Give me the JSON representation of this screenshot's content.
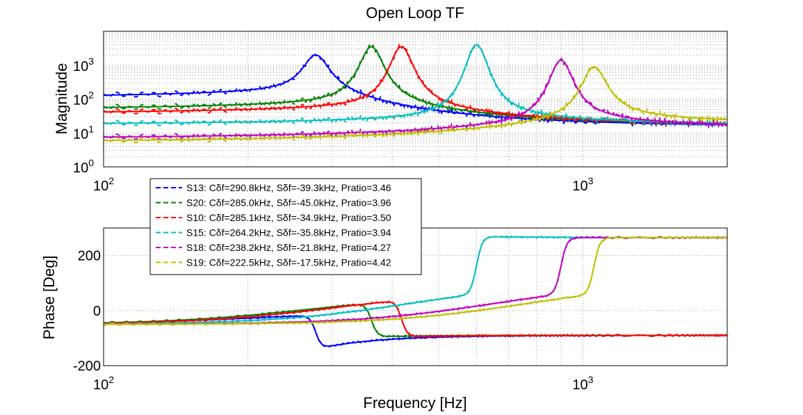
{
  "chart_data": [
    {
      "type": "line",
      "title": "Open Loop TF",
      "xlabel": "",
      "ylabel": "Magnitude",
      "xscale": "log",
      "yscale": "log",
      "xlim": [
        100,
        2000
      ],
      "ylim": [
        1,
        10000
      ],
      "x_ticks": [
        {
          "base": "10",
          "exp": "2",
          "value": 100
        },
        {
          "base": "10",
          "exp": "3",
          "value": 1000
        }
      ],
      "y_ticks": [
        {
          "base": "10",
          "exp": "0",
          "value": 1
        },
        {
          "base": "10",
          "exp": "1",
          "value": 10
        },
        {
          "base": "10",
          "exp": "2",
          "value": 100
        },
        {
          "base": "10",
          "exp": "3",
          "value": 1000
        }
      ],
      "grid": true,
      "series": [
        {
          "name": "S13",
          "color": "#0000ff",
          "low_value": 110,
          "peak_f": 277,
          "peak_value": 2000,
          "high_value": 16
        },
        {
          "name": "S20",
          "color": "#008000",
          "low_value": 50,
          "peak_f": 362,
          "peak_value": 3500,
          "high_value": 17
        },
        {
          "name": "S10",
          "color": "#ff0000",
          "low_value": 38,
          "peak_f": 418,
          "peak_value": 3500,
          "high_value": 17
        },
        {
          "name": "S15",
          "color": "#00bfbf",
          "low_value": 18,
          "peak_f": 600,
          "peak_value": 4000,
          "high_value": 17
        },
        {
          "name": "S18",
          "color": "#bf00bf",
          "low_value": 7,
          "peak_f": 900,
          "peak_value": 1400,
          "high_value": 14
        },
        {
          "name": "S19",
          "color": "#bfbf00",
          "low_value": 5.5,
          "peak_f": 1055,
          "peak_value": 900,
          "high_value": 18
        }
      ]
    },
    {
      "type": "line",
      "title": "",
      "xlabel": "Frequency [Hz]",
      "ylabel": "Phase [Deg]",
      "xscale": "log",
      "xlim": [
        100,
        2000
      ],
      "ylim": [
        -200,
        300
      ],
      "x_ticks": [
        {
          "base": "10",
          "exp": "2",
          "value": 100
        },
        {
          "base": "10",
          "exp": "3",
          "value": 1000
        }
      ],
      "y_ticks": [
        {
          "label": "200",
          "value": 200
        },
        {
          "label": "0",
          "value": 0
        },
        {
          "label": "-200",
          "value": -200
        }
      ],
      "grid": true,
      "series": [
        {
          "name": "S13",
          "color": "#0000ff",
          "transition_f": 277,
          "phase_before": -5,
          "phase_after": -140,
          "phase_end": -90
        },
        {
          "name": "S20",
          "color": "#008000",
          "transition_f": 362,
          "phase_before": 55,
          "phase_after": -95,
          "phase_end": -90
        },
        {
          "name": "S10",
          "color": "#ff0000",
          "transition_f": 418,
          "phase_before": 70,
          "phase_after": -95,
          "phase_end": -90
        },
        {
          "name": "S15",
          "color": "#00bfbf",
          "transition_f": 600,
          "phase_before": 100,
          "phase_after": 270,
          "phase_end": 265
        },
        {
          "name": "S18",
          "color": "#bf00bf",
          "transition_f": 900,
          "phase_before": 100,
          "phase_after": 265,
          "phase_end": 265
        },
        {
          "name": "S19",
          "color": "#bfbf00",
          "transition_f": 1055,
          "phase_before": 100,
          "phase_after": 265,
          "phase_end": 265
        }
      ]
    }
  ],
  "legend": {
    "placement": "between-panels-left",
    "entries": [
      {
        "label": "S13: Cδf=290.8kHz, Sδf=-39.3kHz, Pratio=3.46",
        "color": "#0000ff"
      },
      {
        "label": "S20: Cδf=285.0kHz, Sδf=-45.0kHz, Pratio=3.96",
        "color": "#008000"
      },
      {
        "label": "S10: Cδf=285.1kHz, Sδf=-34.9kHz, Pratio=3.50",
        "color": "#ff0000"
      },
      {
        "label": "S15: Cδf=264.2kHz, Sδf=-35.8kHz, Pratio=3.94",
        "color": "#00bfbf"
      },
      {
        "label": "S18: Cδf=238.2kHz, Sδf=-21.8kHz, Pratio=4.27",
        "color": "#bf00bf"
      },
      {
        "label": "S19: Cδf=222.5kHz, Sδf=-17.5kHz, Pratio=4.42",
        "color": "#bfbf00"
      }
    ]
  }
}
